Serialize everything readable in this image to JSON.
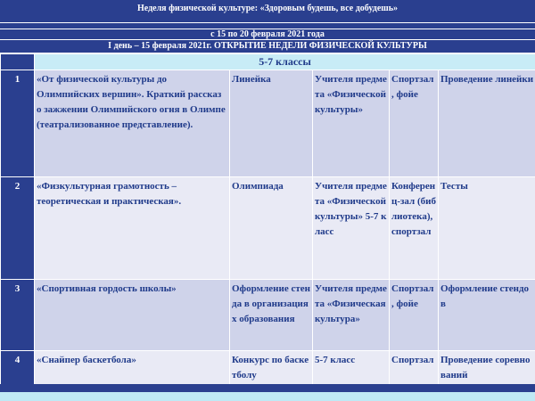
{
  "header": {
    "title": "Неделя физической культуре: «Здоровым будешь, все добудешь»",
    "dates": "с 15 по 20 февраля 2021 года",
    "day": "I день – 15 февраля 2021г. ОТКРЫТИЕ НЕДЕЛИ ФИЗИЧЕСКОЙ КУЛЬТУРЫ"
  },
  "section": "5-7 классы",
  "table": {
    "rows": [
      [
        "1",
        "«От физической культуры до Олимпийских вершин». Краткий рассказ о зажжении Олимпийского огня в Олимпе (театрализованное представление).",
        "Линейка",
        "Учителя предмета «Физической культуры»",
        "Спортзал , фойе",
        "Проведение линейки"
      ],
      [
        "2",
        "«Физкультурная грамотность – теоретическая и практическая».",
        "Олимпиада",
        "Учителя предмета «Физической культуры» 5-7 класс",
        "Конференц-зал (библиотека), спортзал",
        "Тесты"
      ],
      [
        "3",
        "«Спортивная гордость школы»",
        "Оформление стенда в организациях образования",
        "Учителя предмета «Физическая культура»",
        "Спортзал , фойе",
        "Оформление стендов"
      ],
      [
        "4",
        "«Снайпер баскетбола»",
        "Конкурс по баскетболу",
        "5-7 класс",
        "Спортзал",
        "Проведение соревнований"
      ]
    ]
  }
}
